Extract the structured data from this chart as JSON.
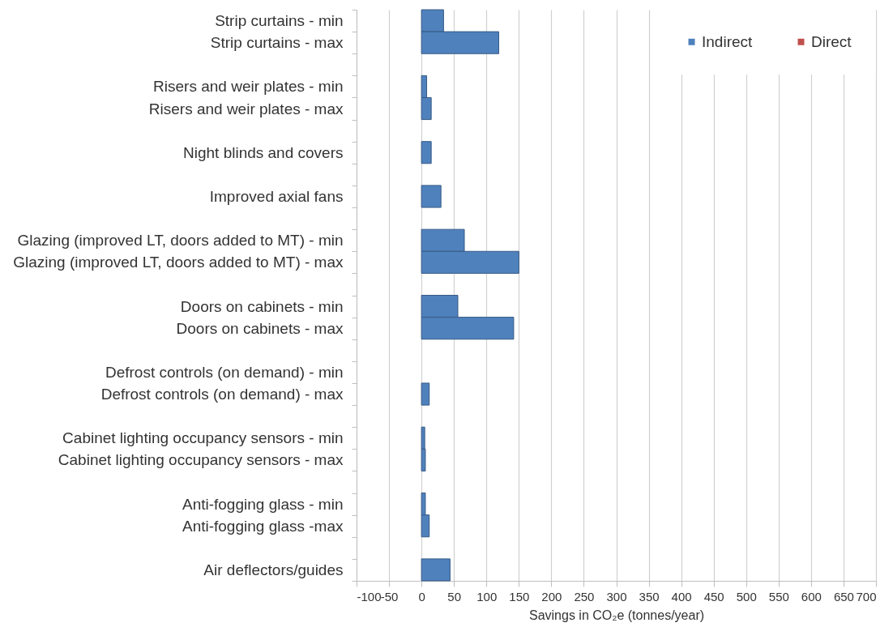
{
  "chart_data": {
    "type": "bar",
    "orientation": "horizontal",
    "stacked": true,
    "categories": [
      "Strip curtains - min",
      "Strip curtains - max",
      null,
      "Risers and weir plates - min",
      "Risers and weir plates - max",
      null,
      "Night blinds and covers",
      null,
      "Improved axial fans",
      null,
      "Glazing (improved LT, doors added to MT) - min",
      "Glazing (improved LT, doors added to MT) - max",
      null,
      "Doors on cabinets - min",
      "Doors on cabinets - max",
      null,
      "Defrost controls (on demand) - min",
      "Defrost controls (on demand) - max",
      null,
      "Cabinet lighting occupancy sensors - min",
      "Cabinet lighting occupancy sensors - max",
      null,
      "Anti-fogging glass - min",
      "Anti-fogging glass -max",
      null,
      "Air deflectors/guides"
    ],
    "series": [
      {
        "name": "Indirect",
        "color": "#4f81bd",
        "values": [
          34,
          119,
          null,
          8,
          15,
          null,
          15,
          null,
          30,
          null,
          66,
          150,
          null,
          56,
          142,
          null,
          null,
          12,
          null,
          5,
          6,
          null,
          6,
          12,
          null,
          44
        ]
      },
      {
        "name": "Direct",
        "color": "#c0504d",
        "values": [
          null,
          null,
          null,
          null,
          null,
          null,
          null,
          null,
          null,
          null,
          null,
          null,
          null,
          null,
          null,
          null,
          null,
          null,
          null,
          null,
          null,
          null,
          null,
          null,
          null,
          null
        ]
      }
    ],
    "xlim": [
      -100,
      700
    ],
    "xticks": [
      -100,
      -50,
      0,
      50,
      100,
      150,
      200,
      250,
      300,
      350,
      400,
      450,
      500,
      550,
      600,
      650,
      700
    ],
    "xlabel": "Savings in CO₂e (tonnes/year)",
    "grid": "x",
    "legend": "top right"
  }
}
